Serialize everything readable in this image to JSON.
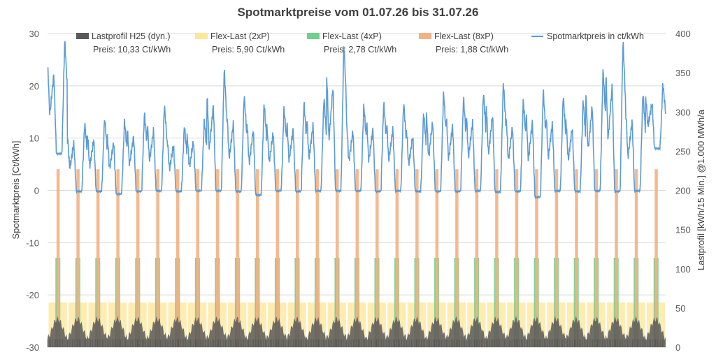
{
  "chart_data": {
    "type": "line",
    "title": "Spotmarktpreise vom 01.07.26 bis 31.07.26",
    "ylabel": "Spotmarktpreis [Ct/kWh]",
    "y2label": "Lastprofil [kWh/15 Min.] @1.000 MWh/a",
    "ylim": [
      -30,
      30
    ],
    "y2lim": [
      0,
      400
    ],
    "yticks": [
      "30",
      "20",
      "10",
      "0",
      "-10",
      "-20",
      "-30"
    ],
    "y2ticks": [
      "400",
      "350",
      "300",
      "250",
      "200",
      "150",
      "100",
      "50",
      "0"
    ],
    "grid": true,
    "legend_position": "top",
    "days": 31,
    "colors": {
      "price": "#5B9BD5",
      "h25": "#595959",
      "flex2": "#FFE699",
      "flex4": "#70CF8C",
      "flex8": "#F4B183",
      "grid": "#D9D9D9"
    },
    "legend": [
      {
        "key": "h25",
        "name": "Lastprofil H25 (dyn.)",
        "price": "Preis: 10,33 Ct/kWh"
      },
      {
        "key": "flex2",
        "name": "Flex-Last (2xP)",
        "price": "Preis: 5,90 Ct/kWh"
      },
      {
        "key": "flex4",
        "name": "Flex-Last (4xP)",
        "price": "Preis: 2,78 Ct/kWh"
      },
      {
        "key": "flex8",
        "name": "Flex-Last (8xP)",
        "price": "Preis: 1,88 Ct/kWh"
      },
      {
        "key": "price",
        "name": "Spotmarktpreis in ct/kWh",
        "price": ""
      }
    ],
    "series": [
      {
        "name": "Spotmarktpreis in ct/kWh",
        "axis": "left",
        "daily_max": [
          29.0,
          13.0,
          14.0,
          13.5,
          15.0,
          16.5,
          12.5,
          13.5,
          23.5,
          18.5,
          17.0,
          16.0,
          17.0,
          18.0,
          28.5,
          16.5,
          17.0,
          17.0,
          15.0,
          19.0,
          18.0,
          19.0,
          21.0,
          17.5,
          19.5,
          18.5,
          17.5,
          23.5,
          29.0,
          19.0,
          20.5
        ],
        "daily_min": [
          7.0,
          -0.2,
          -0.2,
          -0.7,
          -0.2,
          -0.1,
          -0.2,
          -0.1,
          -0.1,
          -0.2,
          -0.9,
          -0.1,
          -0.2,
          -0.1,
          -0.1,
          -0.1,
          -0.2,
          -0.1,
          -0.2,
          -0.2,
          -0.2,
          -0.1,
          -0.3,
          -0.2,
          -1.3,
          -0.1,
          -0.2,
          -0.1,
          -0.2,
          -0.1,
          8.0
        ]
      },
      {
        "name": "Flex-Last (8xP)",
        "axis": "right",
        "level": 227
      },
      {
        "name": "Flex-Last (4xP)",
        "axis": "right",
        "level": 114
      },
      {
        "name": "Flex-Last (2xP)",
        "axis": "right",
        "level": 57
      },
      {
        "name": "Lastprofil H25 (dyn.)",
        "axis": "right",
        "daily_peak": 36
      }
    ]
  }
}
